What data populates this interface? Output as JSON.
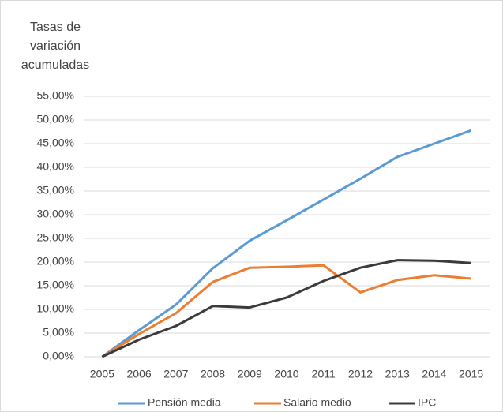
{
  "chart_data": {
    "type": "line",
    "title": [
      "Tasas de",
      "variación",
      "acumuladas"
    ],
    "categories": [
      "2005",
      "2006",
      "2007",
      "2008",
      "2009",
      "2010",
      "2011",
      "2012",
      "2013",
      "2014",
      "2015"
    ],
    "series": [
      {
        "name": "Pensión media",
        "color": "#5b9bd5",
        "values": [
          0,
          5.6,
          11,
          18.7,
          24.5,
          28.8,
          33.2,
          37.6,
          42.2,
          45,
          47.8
        ]
      },
      {
        "name": "Salario medio",
        "color": "#ed7d31",
        "values": [
          0,
          4.8,
          9.2,
          15.8,
          18.8,
          19,
          19.3,
          13.6,
          16.2,
          17.2,
          16.5
        ]
      },
      {
        "name": "IPC",
        "color": "#3b3b3b",
        "values": [
          0,
          3.6,
          6.5,
          10.7,
          10.4,
          12.5,
          16,
          18.8,
          20.4,
          20.3,
          19.8
        ]
      }
    ],
    "ylim": [
      0,
      55
    ],
    "yticks": [
      {
        "value": 0,
        "label": "0,00%"
      },
      {
        "value": 5,
        "label": "5,00%"
      },
      {
        "value": 10,
        "label": "10,00%"
      },
      {
        "value": 15,
        "label": "15,00%"
      },
      {
        "value": 20,
        "label": "20,00%"
      },
      {
        "value": 25,
        "label": "25,00%"
      },
      {
        "value": 30,
        "label": "30,00%"
      },
      {
        "value": 35,
        "label": "35,00%"
      },
      {
        "value": 40,
        "label": "40,00%"
      },
      {
        "value": 45,
        "label": "45,00%"
      },
      {
        "value": 50,
        "label": "50,00%"
      },
      {
        "value": 55,
        "label": "55,00%"
      }
    ],
    "grid": true,
    "legend": "bottom"
  }
}
